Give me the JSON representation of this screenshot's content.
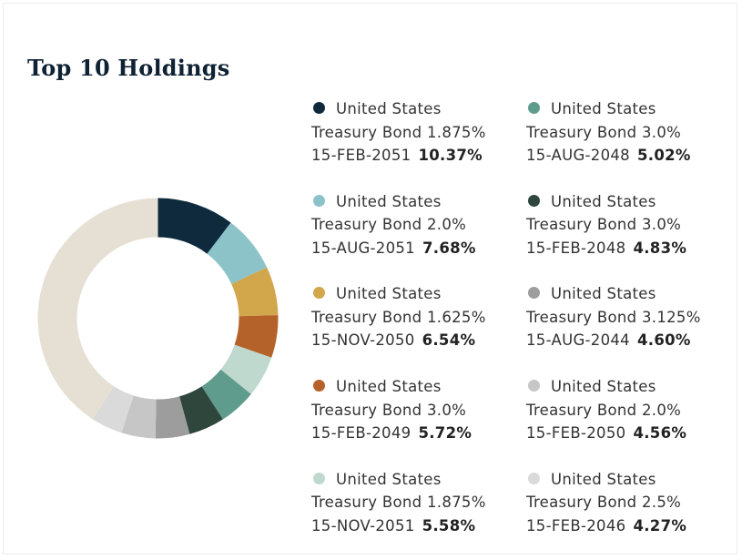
{
  "page": {
    "title": "Top 10 Holdings"
  },
  "chart_data": {
    "type": "pie",
    "title": "Top 10 Holdings",
    "remainder_color": "#e6e0d4",
    "slices": [
      {
        "line1": "United States",
        "line2": "Treasury Bond 1.875%",
        "date": "15-FEB-2051",
        "pct_label": "10.37%",
        "value": 10.37,
        "color": "#0e2a3c"
      },
      {
        "line1": "United States",
        "line2": "Treasury Bond 2.0%",
        "date": "15-AUG-2051",
        "pct_label": "7.68%",
        "value": 7.68,
        "color": "#8cc3c9"
      },
      {
        "line1": "United States",
        "line2": "Treasury Bond 1.625%",
        "date": "15-NOV-2050",
        "pct_label": "6.54%",
        "value": 6.54,
        "color": "#d2a64a"
      },
      {
        "line1": "United States",
        "line2": "Treasury Bond 3.0%",
        "date": "15-FEB-2049",
        "pct_label": "5.72%",
        "value": 5.72,
        "color": "#b5622a"
      },
      {
        "line1": "United States",
        "line2": "Treasury Bond 1.875%",
        "date": "15-NOV-2051",
        "pct_label": "5.58%",
        "value": 5.58,
        "color": "#bfd9ce"
      },
      {
        "line1": "United States",
        "line2": "Treasury Bond 3.0%",
        "date": "15-AUG-2048",
        "pct_label": "5.02%",
        "value": 5.02,
        "color": "#5f9c8e"
      },
      {
        "line1": "United States",
        "line2": "Treasury Bond 3.0%",
        "date": "15-FEB-2048",
        "pct_label": "4.83%",
        "value": 4.83,
        "color": "#2e463c"
      },
      {
        "line1": "United States",
        "line2": "Treasury Bond 3.125%",
        "date": "15-AUG-2044",
        "pct_label": "4.60%",
        "value": 4.6,
        "color": "#9d9d9d"
      },
      {
        "line1": "United States",
        "line2": "Treasury Bond 2.0%",
        "date": "15-FEB-2050",
        "pct_label": "4.56%",
        "value": 4.56,
        "color": "#c6c6c6"
      },
      {
        "line1": "United States",
        "line2": "Treasury Bond 2.5%",
        "date": "15-FEB-2046",
        "pct_label": "4.27%",
        "value": 4.27,
        "color": "#dadada"
      }
    ]
  }
}
